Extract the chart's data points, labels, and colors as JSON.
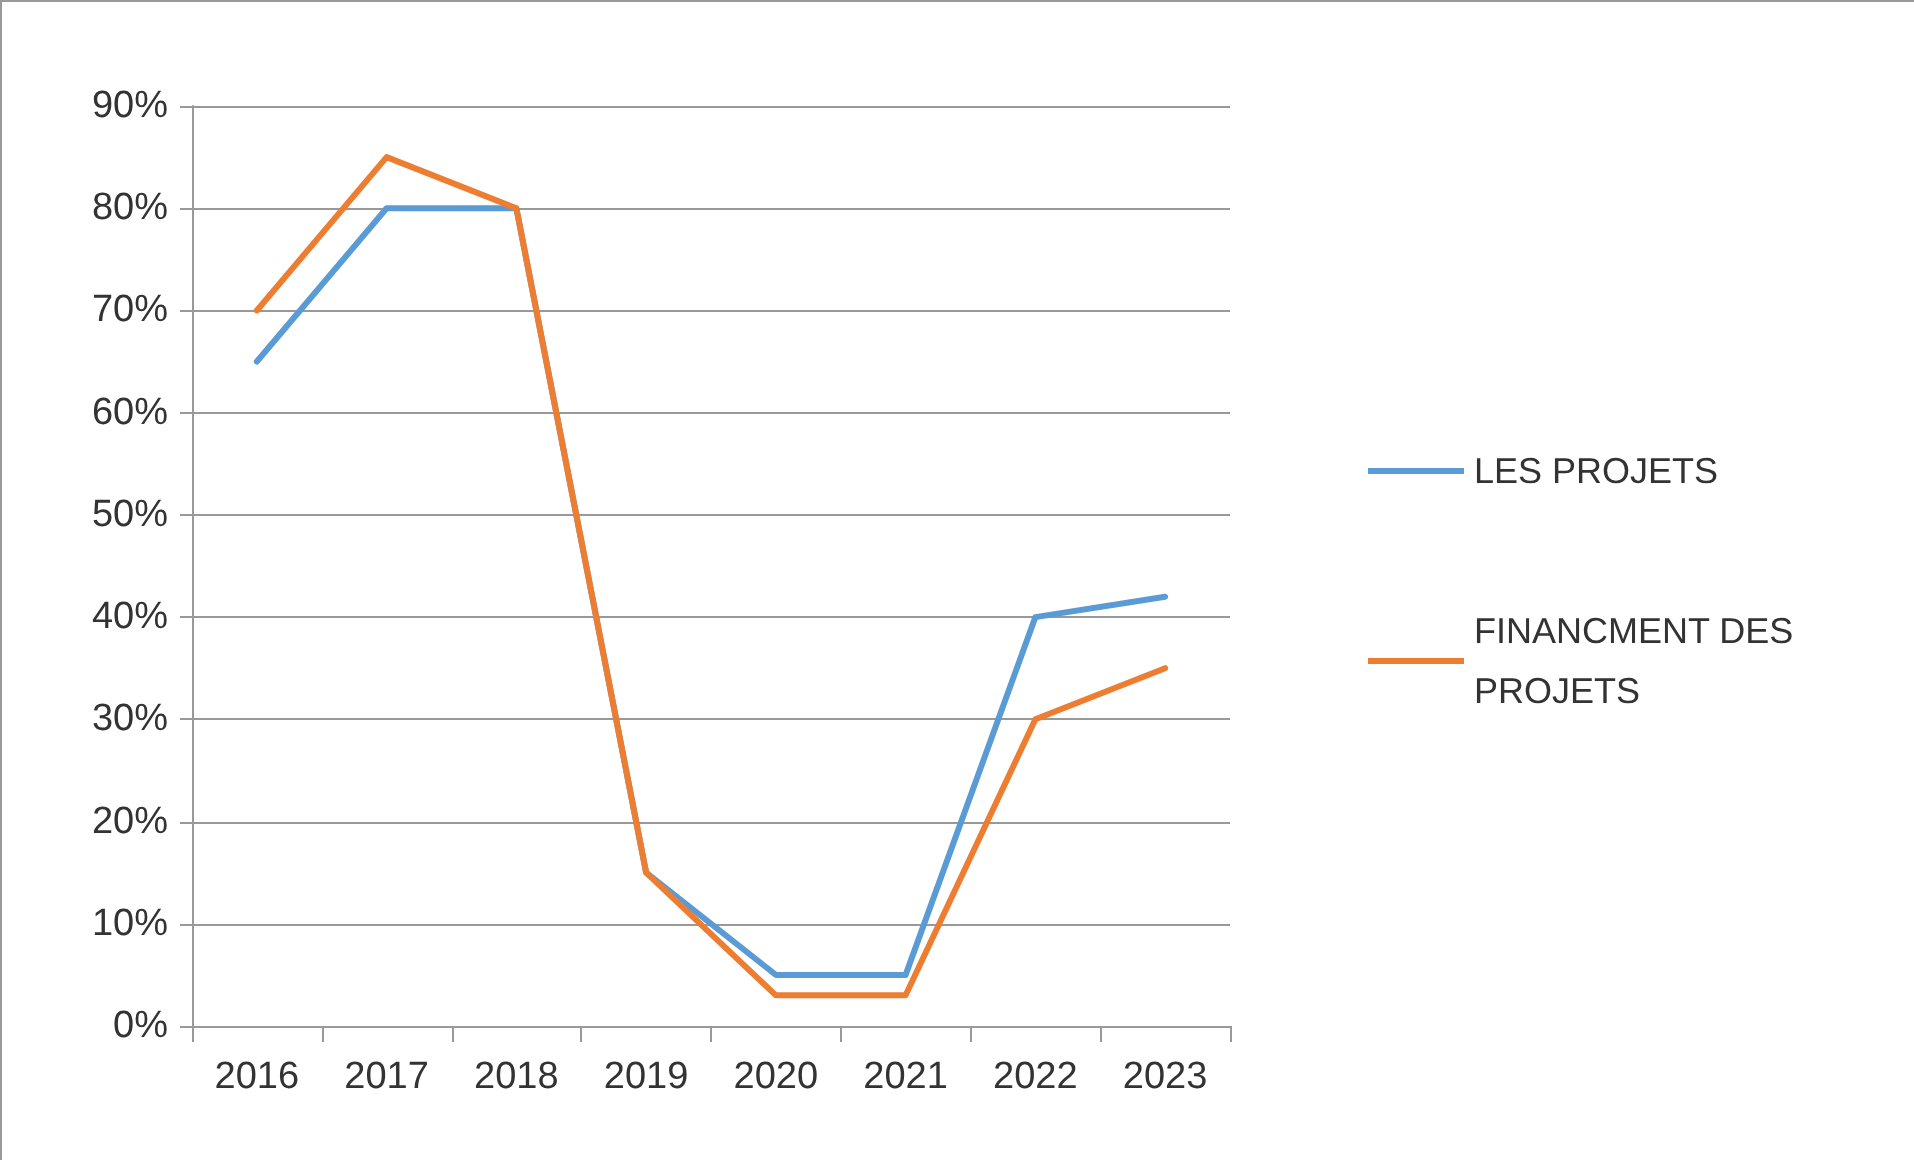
{
  "chart_data": {
    "type": "line",
    "categories": [
      "2016",
      "2017",
      "2018",
      "2019",
      "2020",
      "2021",
      "2022",
      "2023"
    ],
    "series": [
      {
        "name": "LES PROJETS",
        "color": "#5b9bd5",
        "values": [
          65,
          80,
          80,
          15,
          5,
          5,
          40,
          42
        ]
      },
      {
        "name": "FINANCMENT DES PROJETS",
        "color": "#ed7d31",
        "values": [
          70,
          85,
          80,
          15,
          3,
          3,
          30,
          35
        ]
      }
    ],
    "ylim": [
      0,
      90
    ],
    "yticks": [
      {
        "value": 0,
        "label": "0%"
      },
      {
        "value": 10,
        "label": "10%"
      },
      {
        "value": 20,
        "label": "20%"
      },
      {
        "value": 30,
        "label": "30%"
      },
      {
        "value": 40,
        "label": "40%"
      },
      {
        "value": 50,
        "label": "50%"
      },
      {
        "value": 60,
        "label": "60%"
      },
      {
        "value": 70,
        "label": "70%"
      },
      {
        "value": 80,
        "label": "80%"
      },
      {
        "value": 90,
        "label": "90%"
      }
    ],
    "grid": "y",
    "legend": "right",
    "marker": "none",
    "line_style": "solid"
  }
}
